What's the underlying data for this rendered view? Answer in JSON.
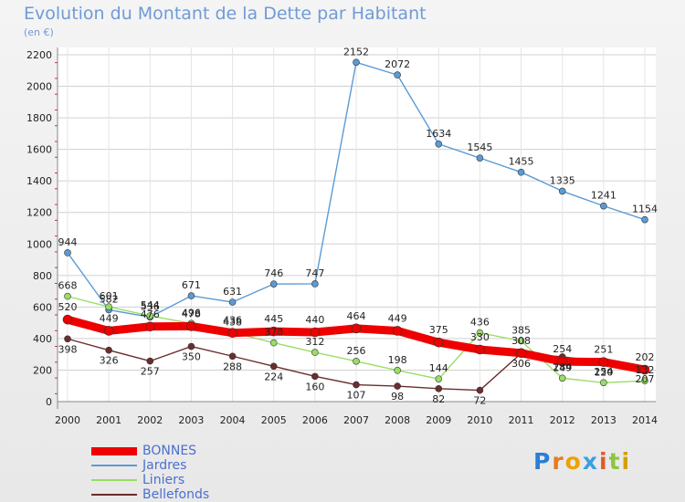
{
  "title": "Evolution du Montant de la Dette par Habitant",
  "subtitle": "(en €)",
  "logo_text": "Proxiti",
  "chart_data": {
    "type": "line",
    "title": "Evolution du Montant de la Dette par Habitant",
    "subtitle": "(en €)",
    "x": [
      "2000",
      "2001",
      "2002",
      "2003",
      "2004",
      "2005",
      "2006",
      "2007",
      "2008",
      "2009",
      "2010",
      "2011",
      "2012",
      "2013",
      "2014"
    ],
    "ylim": [
      0,
      2200
    ],
    "yticks": [
      0,
      200,
      400,
      600,
      800,
      1000,
      1200,
      1400,
      1600,
      1800,
      2000,
      2200
    ],
    "grid": true,
    "legend": "bottom-left",
    "series": [
      {
        "name": "BONNES",
        "color": "#ee0000",
        "values": [
          520,
          449,
          476,
          478,
          436,
          445,
          440,
          464,
          449,
          375,
          330,
          308,
          254,
          251,
          202
        ]
      },
      {
        "name": "Jardres",
        "color": "#5b9bd5",
        "values": [
          944,
          582,
          536,
          671,
          631,
          746,
          747,
          2152,
          2072,
          1634,
          1545,
          1455,
          1335,
          1241,
          1154
        ]
      },
      {
        "name": "Liniers",
        "color": "#99dd66",
        "values": [
          668,
          601,
          544,
          496,
          438,
          373,
          312,
          256,
          198,
          144,
          436,
          385,
          149,
          120,
          132
        ]
      },
      {
        "name": "Bellefonds",
        "color": "#6b2d2d",
        "values": [
          398,
          326,
          257,
          350,
          288,
          224,
          160,
          107,
          98,
          82,
          72,
          306,
          284,
          254,
          207
        ]
      }
    ]
  }
}
